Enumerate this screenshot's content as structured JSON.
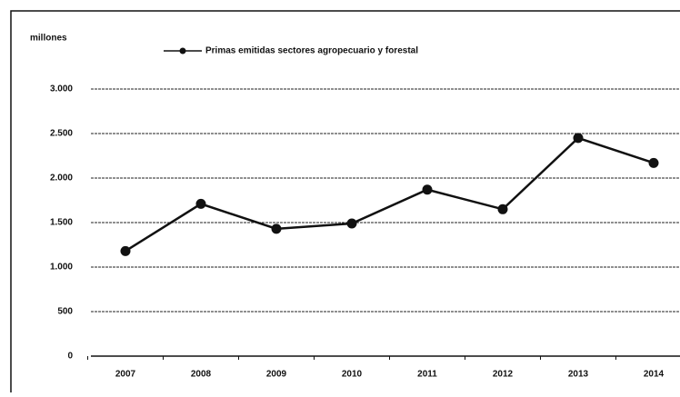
{
  "chart_data": {
    "type": "line",
    "y_label": "millones",
    "categories": [
      "2007",
      "2008",
      "2009",
      "2010",
      "2011",
      "2012",
      "2013",
      "2014"
    ],
    "series": [
      {
        "name": "Primas emitidas sectores agropecuario y forestal",
        "color": "#111111",
        "values": [
          1180,
          1710,
          1430,
          1490,
          1870,
          1650,
          2450,
          2170
        ]
      }
    ],
    "ylim": [
      0,
      3000
    ],
    "yticks": [
      0,
      500,
      {
        "value": 1000,
        "label": "1.000"
      },
      {
        "value": 1500,
        "label": "1.500"
      },
      {
        "value": 2000,
        "label": "2.000"
      },
      {
        "value": 2500,
        "label": "2.500"
      },
      {
        "value": 3000,
        "label": "3.000"
      }
    ],
    "grid": true,
    "legend": "top"
  }
}
